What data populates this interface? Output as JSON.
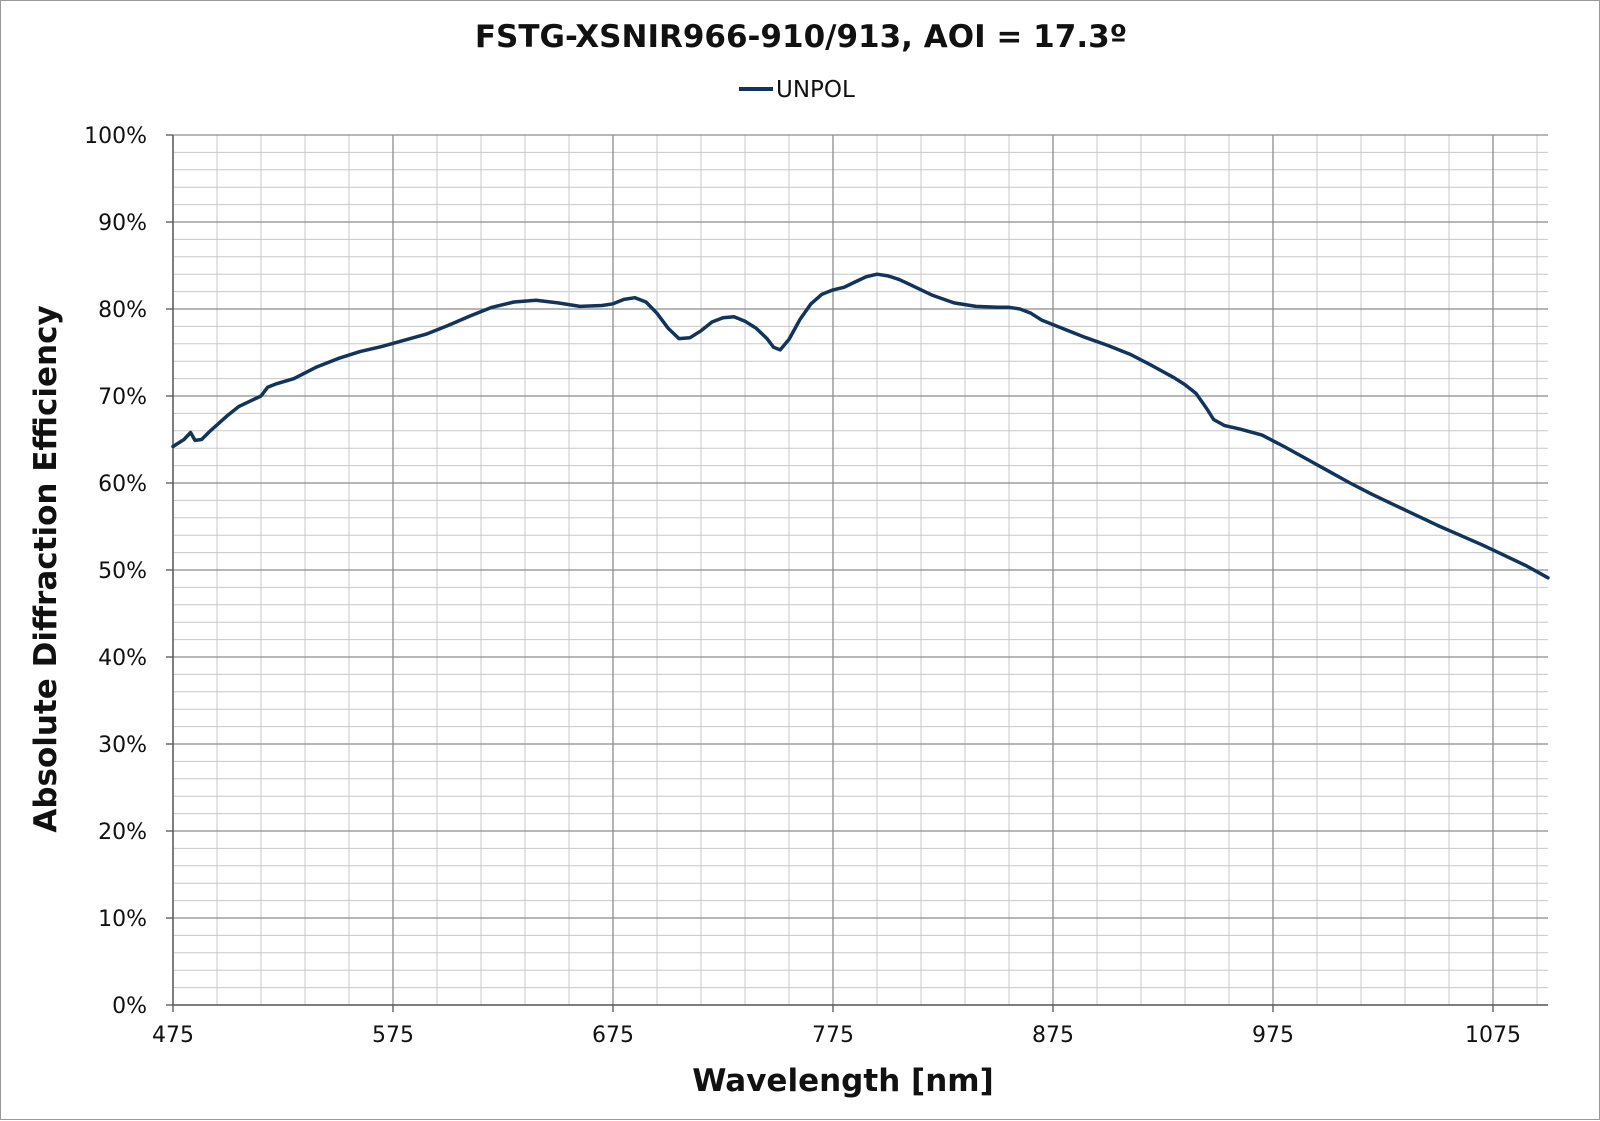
{
  "chart_data": {
    "type": "line",
    "title": "FSTG-XSNIR966-910/913, AOI = 17.3º",
    "xlabel": "Wavelength [nm]",
    "ylabel": "Absolute Diffraction Efficiency",
    "xlim": [
      475,
      1100
    ],
    "ylim": [
      0,
      1
    ],
    "x_ticks": [
      "475",
      "575",
      "675",
      "775",
      "875",
      "975",
      "1075"
    ],
    "y_ticks": [
      "0%",
      "10%",
      "20%",
      "30%",
      "40%",
      "50%",
      "60%",
      "70%",
      "80%",
      "90%",
      "100%"
    ],
    "grid": true,
    "legend": "top-center",
    "series": [
      {
        "name": "UNPOL",
        "color": "#12345a",
        "points": [
          [
            475,
            0.642
          ],
          [
            480,
            0.65
          ],
          [
            483,
            0.658
          ],
          [
            485,
            0.649
          ],
          [
            488,
            0.65
          ],
          [
            492,
            0.66
          ],
          [
            500,
            0.678
          ],
          [
            505,
            0.688
          ],
          [
            510,
            0.694
          ],
          [
            515,
            0.7
          ],
          [
            518,
            0.71
          ],
          [
            522,
            0.714
          ],
          [
            530,
            0.72
          ],
          [
            540,
            0.733
          ],
          [
            550,
            0.743
          ],
          [
            560,
            0.751
          ],
          [
            570,
            0.757
          ],
          [
            580,
            0.764
          ],
          [
            590,
            0.771
          ],
          [
            600,
            0.781
          ],
          [
            610,
            0.792
          ],
          [
            620,
            0.802
          ],
          [
            630,
            0.808
          ],
          [
            640,
            0.81
          ],
          [
            650,
            0.807
          ],
          [
            660,
            0.803
          ],
          [
            670,
            0.804
          ],
          [
            675,
            0.806
          ],
          [
            680,
            0.811
          ],
          [
            685,
            0.813
          ],
          [
            690,
            0.808
          ],
          [
            695,
            0.795
          ],
          [
            700,
            0.778
          ],
          [
            705,
            0.766
          ],
          [
            710,
            0.767
          ],
          [
            715,
            0.775
          ],
          [
            720,
            0.785
          ],
          [
            725,
            0.79
          ],
          [
            730,
            0.791
          ],
          [
            735,
            0.786
          ],
          [
            740,
            0.778
          ],
          [
            745,
            0.766
          ],
          [
            748,
            0.756
          ],
          [
            751,
            0.753
          ],
          [
            755,
            0.765
          ],
          [
            760,
            0.788
          ],
          [
            765,
            0.806
          ],
          [
            770,
            0.817
          ],
          [
            775,
            0.822
          ],
          [
            780,
            0.825
          ],
          [
            785,
            0.831
          ],
          [
            790,
            0.837
          ],
          [
            795,
            0.84
          ],
          [
            800,
            0.838
          ],
          [
            805,
            0.834
          ],
          [
            810,
            0.828
          ],
          [
            820,
            0.816
          ],
          [
            830,
            0.807
          ],
          [
            840,
            0.803
          ],
          [
            850,
            0.802
          ],
          [
            855,
            0.802
          ],
          [
            860,
            0.8
          ],
          [
            865,
            0.795
          ],
          [
            870,
            0.787
          ],
          [
            880,
            0.777
          ],
          [
            890,
            0.767
          ],
          [
            900,
            0.758
          ],
          [
            910,
            0.748
          ],
          [
            920,
            0.735
          ],
          [
            930,
            0.721
          ],
          [
            935,
            0.713
          ],
          [
            940,
            0.703
          ],
          [
            945,
            0.685
          ],
          [
            948,
            0.673
          ],
          [
            953,
            0.666
          ],
          [
            960,
            0.662
          ],
          [
            970,
            0.655
          ],
          [
            980,
            0.642
          ],
          [
            990,
            0.628
          ],
          [
            1000,
            0.614
          ],
          [
            1010,
            0.6
          ],
          [
            1020,
            0.587
          ],
          [
            1030,
            0.575
          ],
          [
            1040,
            0.563
          ],
          [
            1050,
            0.551
          ],
          [
            1060,
            0.54
          ],
          [
            1070,
            0.529
          ],
          [
            1080,
            0.517
          ],
          [
            1090,
            0.505
          ],
          [
            1100,
            0.491
          ]
        ]
      }
    ]
  }
}
